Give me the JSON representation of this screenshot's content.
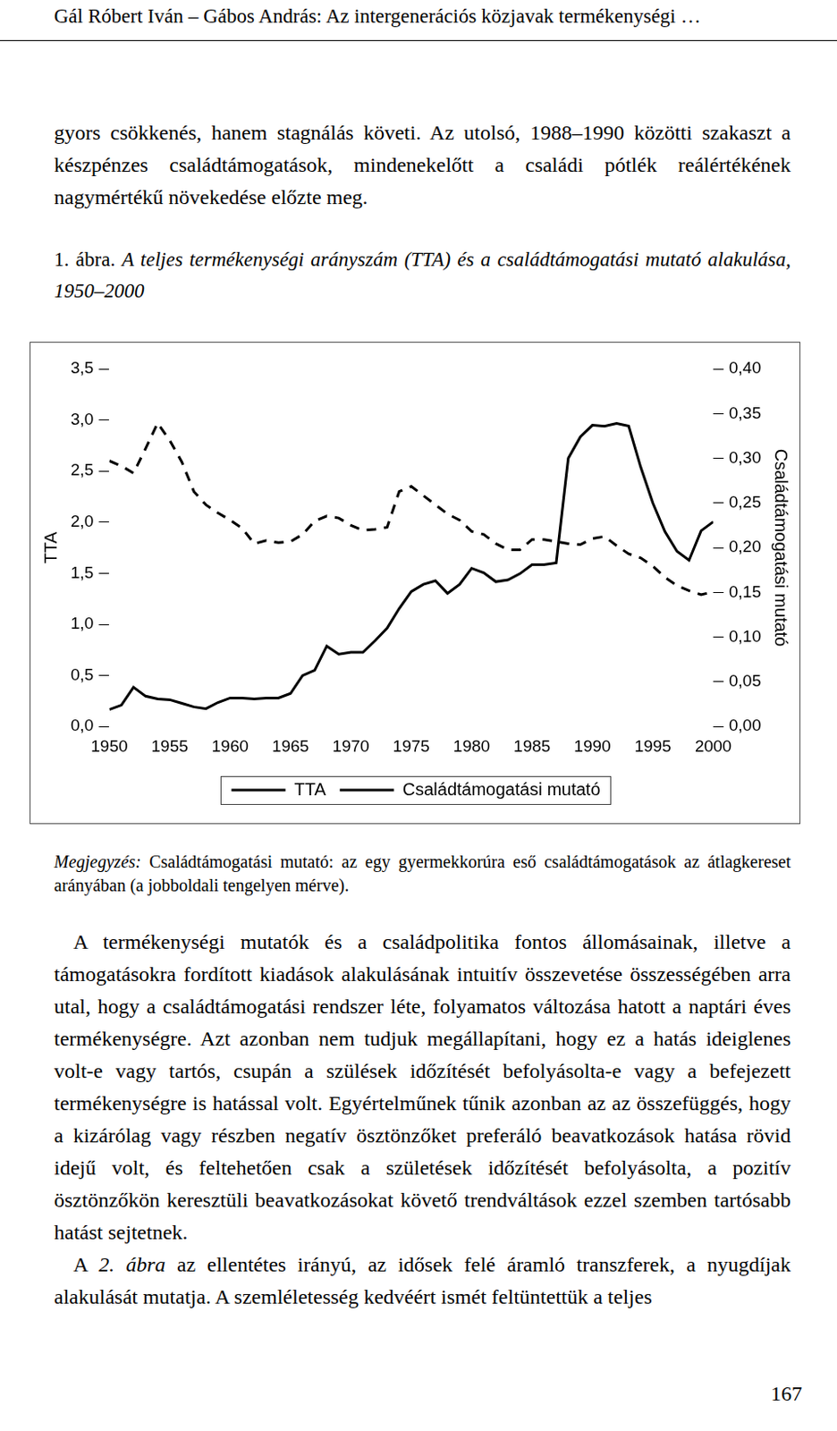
{
  "header": "Gál Róbert Iván – Gábos András: Az intergenerációs közjavak termékenységi …",
  "intro_paragraph": [
    {
      "text": "gyors csökkenés, hanem stagnálás követi. Az utolsó, 1988–1990 közötti szakaszt a készpénzes családtámogatások, mindenekelőtt a családi pótlék reálértékének nagymértékű növekedése előzte meg."
    }
  ],
  "figure_label": "1. ábra.",
  "chart_data": {
    "type": "line",
    "title": "A teljes termékenységi arányszám (TTA) és a családtámogatási mutató alakulása, 1950–2000",
    "x": [
      1950,
      1951,
      1952,
      1953,
      1954,
      1955,
      1956,
      1957,
      1958,
      1959,
      1960,
      1961,
      1962,
      1963,
      1964,
      1965,
      1966,
      1967,
      1968,
      1969,
      1970,
      1971,
      1972,
      1973,
      1974,
      1975,
      1976,
      1977,
      1978,
      1979,
      1980,
      1981,
      1982,
      1983,
      1984,
      1985,
      1986,
      1987,
      1988,
      1989,
      1990,
      1991,
      1992,
      1993,
      1994,
      1995,
      1996,
      1997,
      1998,
      1999,
      2000
    ],
    "xlim": [
      1950,
      2000
    ],
    "xticks": [
      1950,
      1955,
      1960,
      1965,
      1970,
      1975,
      1980,
      1985,
      1990,
      1995,
      2000
    ],
    "y_label": "TTA",
    "ylim": [
      0,
      3.5
    ],
    "yticks": [
      {
        "value": 0,
        "label": "0,0"
      },
      {
        "value": 0.5,
        "label": "0,5"
      },
      {
        "value": 1,
        "label": "1,0"
      },
      {
        "value": 1.5,
        "label": "1,5"
      },
      {
        "value": 2,
        "label": "2,0"
      },
      {
        "value": 2.5,
        "label": "2,5"
      },
      {
        "value": 3,
        "label": "3,0"
      },
      {
        "value": 3.5,
        "label": "3,5"
      }
    ],
    "y2_label": "Családtámogatási mutató",
    "y2lim": [
      0,
      0.4
    ],
    "y2ticks": [
      {
        "value": 0,
        "label": "0,00"
      },
      {
        "value": 0.05,
        "label": "0,05"
      },
      {
        "value": 0.1,
        "label": "0,10"
      },
      {
        "value": 0.15,
        "label": "0,15"
      },
      {
        "value": 0.2,
        "label": "0,20"
      },
      {
        "value": 0.25,
        "label": "0,25"
      },
      {
        "value": 0.3,
        "label": "0,30"
      },
      {
        "value": 0.35,
        "label": "0,35"
      },
      {
        "value": 0.4,
        "label": "0,40"
      }
    ],
    "grid": false,
    "legend": "bottom",
    "series": [
      {
        "name": "TTA",
        "color": "#000000",
        "line_style": "dashed",
        "values": [
          2.6,
          2.55,
          2.48,
          2.72,
          2.97,
          2.8,
          2.59,
          2.3,
          2.17,
          2.09,
          2.02,
          1.94,
          1.79,
          1.82,
          1.8,
          1.81,
          1.88,
          2.01,
          2.06,
          2.04,
          1.97,
          1.92,
          1.93,
          1.95,
          2.3,
          2.35,
          2.26,
          2.17,
          2.08,
          2.02,
          1.91,
          1.88,
          1.79,
          1.73,
          1.73,
          1.83,
          1.83,
          1.81,
          1.79,
          1.78,
          1.84,
          1.86,
          1.77,
          1.69,
          1.65,
          1.57,
          1.46,
          1.38,
          1.33,
          1.29,
          1.32
        ]
      },
      {
        "name": "Családtámogatási mutató",
        "color": "#000000",
        "line_style": "solid",
        "axis": "y2",
        "values": [
          0.019,
          0.024,
          0.044,
          0.034,
          0.031,
          0.03,
          0.026,
          0.022,
          0.02,
          0.027,
          0.032,
          0.032,
          0.031,
          0.032,
          0.032,
          0.037,
          0.057,
          0.063,
          0.09,
          0.081,
          0.083,
          0.083,
          0.096,
          0.11,
          0.132,
          0.151,
          0.159,
          0.163,
          0.149,
          0.159,
          0.177,
          0.172,
          0.162,
          0.164,
          0.171,
          0.181,
          0.181,
          0.183,
          0.3,
          0.324,
          0.337,
          0.336,
          0.339,
          0.336,
          0.29,
          0.25,
          0.218,
          0.196,
          0.186,
          0.219,
          0.229
        ]
      }
    ]
  },
  "note": {
    "label": "Megjegyzés:",
    "text": "Családtámogatási mutató: az egy gyermekkorúra eső családtámogatások az átlagkereset arányában (a jobboldali tengelyen mérve)."
  },
  "body_paragraphs": [
    [
      {
        "text": "A termékenységi mutatók és a családpolitika fontos állomásainak, illetve a támogatásokra fordított kiadások alakulásának intuitív összevetése összességében arra utal, hogy a családtámogatási rendszer léte, folyamatos változása hatott a naptári éves termékenységre. Azt azonban nem tudjuk megállapítani, hogy ez a hatás ideiglenes volt-e vagy tartós, csupán a szülések időzítését befolyásolta-e vagy a befejezett termékenységre is hatással volt. Egyértelműnek tűnik azonban az az összefüggés, hogy a kizárólag vagy részben negatív ösztönzőket preferáló beavatkozások hatása rövid idejű volt, és feltehetően csak a születések időzítését befolyásolta, a pozitív ösztönzőkön keresztüli beavatkozásokat követő trendváltások ezzel szemben tartósabb hatást sejtetnek."
      }
    ],
    [
      {
        "text": "A "
      },
      {
        "text": "2. ábra",
        "italic": true
      },
      {
        "text": " az ellentétes irányú, az idősek felé áramló transzferek, a nyugdíjak alakulását mutatja. A szemléletesség kedvéért ismét feltüntettük a teljes"
      }
    ]
  ],
  "page_number": "167"
}
